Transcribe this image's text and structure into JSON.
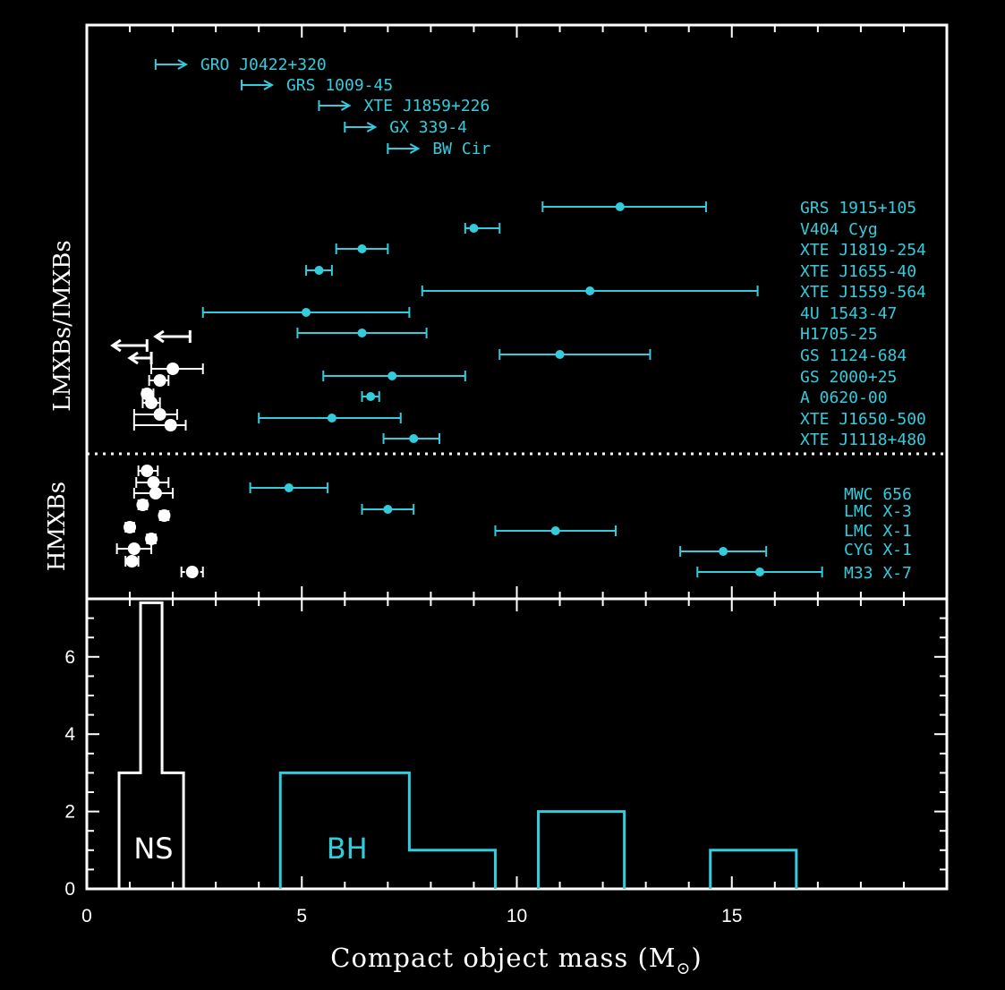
{
  "chart_data": [
    {
      "type": "scatter",
      "panel": "top",
      "xlabel": "Compact object mass (M",
      "xlabel_sub": "⊙",
      "xlabel_close": ")",
      "xlim": [
        0,
        20
      ],
      "groups": [
        {
          "label": "LMXBs/IMXBs"
        },
        {
          "label": "HMXBs"
        }
      ],
      "lower_limits": [
        {
          "name": "GRO J0422+320",
          "x": 1.6
        },
        {
          "name": "GRS 1009-45",
          "x": 3.6
        },
        {
          "name": "XTE J1859+226",
          "x": 5.4
        },
        {
          "name": "GX 339-4",
          "x": 6.0
        },
        {
          "name": "BW Cir",
          "x": 7.0
        }
      ],
      "black_holes_lmxb": [
        {
          "name": "GRS 1915+105",
          "x": 12.4,
          "xlo": 10.6,
          "xhi": 14.4
        },
        {
          "name": "V404 Cyg",
          "x": 9.0,
          "xlo": 8.8,
          "xhi": 9.6
        },
        {
          "name": "XTE J1819-254",
          "x": 6.4,
          "xlo": 5.8,
          "xhi": 7.0
        },
        {
          "name": "XTE J1655-40",
          "x": 5.4,
          "xlo": 5.1,
          "xhi": 5.7
        },
        {
          "name": "XTE J1559-564",
          "x": 11.7,
          "xlo": 7.8,
          "xhi": 15.6
        },
        {
          "name": "4U 1543-47",
          "x": 5.1,
          "xlo": 2.7,
          "xhi": 7.5
        },
        {
          "name": "H1705-25",
          "x": 6.4,
          "xlo": 4.9,
          "xhi": 7.9
        },
        {
          "name": "GS 1124-684",
          "x": 11.0,
          "xlo": 9.6,
          "xhi": 13.1
        },
        {
          "name": "GS 2000+25",
          "x": 7.1,
          "xlo": 5.5,
          "xhi": 8.8
        },
        {
          "name": "A 0620-00",
          "x": 6.6,
          "xlo": 6.4,
          "xhi": 6.8
        },
        {
          "name": "XTE J1650-500",
          "x": 5.7,
          "xlo": 4.0,
          "xhi": 7.3
        },
        {
          "name": "XTE J1118+480",
          "x": 7.6,
          "xlo": 6.9,
          "xhi": 8.2
        }
      ],
      "black_holes_hmxb": [
        {
          "name": "MWC 656",
          "x": 4.7,
          "xlo": 3.8,
          "xhi": 5.6
        },
        {
          "name": "LMC X-3",
          "x": 7.0,
          "xlo": 6.4,
          "xhi": 7.6
        },
        {
          "name": "LMC X-1",
          "x": 10.9,
          "xlo": 9.5,
          "xhi": 12.3
        },
        {
          "name": "CYG X-1",
          "x": 14.8,
          "xlo": 13.8,
          "xhi": 15.8
        },
        {
          "name": "M33 X-7",
          "x": 15.65,
          "xlo": 14.2,
          "xhi": 17.1
        }
      ],
      "neutron_star_limits": [
        {
          "x": 0.6,
          "dir": "right",
          "xhi": 1.4
        },
        {
          "x": 2.4,
          "dir": "left",
          "xlo": 1.6
        },
        {
          "x": 1.0,
          "dir": "right",
          "xhi": 1.5
        }
      ],
      "neutron_stars_lmxb": [
        {
          "x": 2.0,
          "xlo": 1.5,
          "xhi": 2.7
        },
        {
          "x": 1.7,
          "xlo": 1.45,
          "xhi": 1.9
        },
        {
          "x": 1.4,
          "xlo": 1.3,
          "xhi": 1.55
        },
        {
          "x": 1.5,
          "xlo": 1.3,
          "xhi": 1.7
        },
        {
          "x": 1.7,
          "xlo": 1.1,
          "xhi": 2.1
        },
        {
          "x": 1.95,
          "xlo": 1.1,
          "xhi": 2.3
        }
      ],
      "neutron_stars_hmxb": [
        {
          "x": 1.4,
          "xlo": 1.2,
          "xhi": 1.65
        },
        {
          "x": 1.55,
          "xlo": 1.15,
          "xhi": 1.9
        },
        {
          "x": 1.6,
          "xlo": 1.1,
          "xhi": 2.0
        },
        {
          "x": 1.3,
          "xlo": 1.2,
          "xhi": 1.4
        },
        {
          "x": 1.8,
          "xlo": 1.7,
          "xhi": 1.9
        },
        {
          "x": 1.0,
          "xlo": 0.9,
          "xhi": 1.1
        },
        {
          "x": 1.5,
          "xlo": 1.4,
          "xhi": 1.6
        },
        {
          "x": 1.1,
          "xlo": 0.7,
          "xhi": 1.5
        },
        {
          "x": 1.05,
          "xlo": 0.9,
          "xhi": 1.2
        },
        {
          "x": 2.45,
          "xlo": 2.2,
          "xhi": 2.7,
          "dashed": true
        }
      ]
    },
    {
      "type": "histogram",
      "panel": "bottom",
      "xlim": [
        0,
        20
      ],
      "ylim": [
        0,
        7.5
      ],
      "xticks": [
        "0",
        "5",
        "10",
        "15"
      ],
      "yticks": [
        "0",
        "2",
        "4",
        "6"
      ],
      "series": [
        {
          "name": "NS",
          "color": "#ffffff",
          "bins": [
            [
              0.75,
              1.25,
              3
            ],
            [
              1.25,
              1.75,
              7.4
            ],
            [
              1.75,
              2.25,
              3
            ]
          ]
        },
        {
          "name": "BH",
          "color": "#33ccdd",
          "bins": [
            [
              4.5,
              7.5,
              3
            ],
            [
              7.5,
              9.5,
              1
            ],
            [
              10.5,
              12.5,
              2
            ],
            [
              14.5,
              16.5,
              1
            ]
          ]
        }
      ]
    }
  ]
}
